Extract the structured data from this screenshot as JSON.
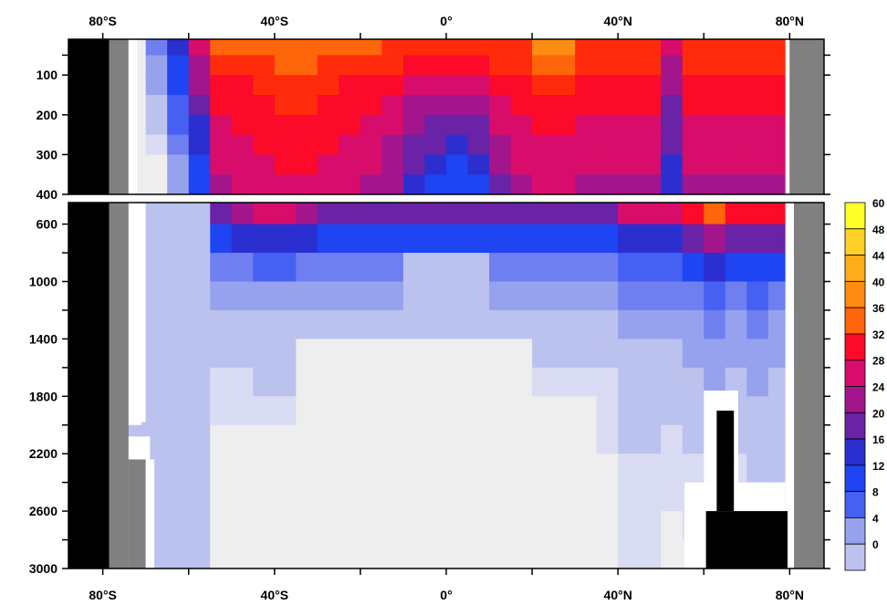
{
  "chart_data": {
    "type": "heatmap",
    "description_free": true,
    "x": {
      "unit": "latitude (degrees)",
      "range": [
        -88,
        88
      ],
      "tick_values": [
        -80,
        -40,
        0,
        40,
        80
      ],
      "tick_labels": [
        "80°S",
        "40°S",
        "0°",
        "40°N",
        "80°N"
      ],
      "minor_tick_values": [
        -60,
        -20,
        20,
        60
      ]
    },
    "y_upper": {
      "unit": "depth (m)",
      "range": [
        10,
        400
      ],
      "tick_values": [
        100,
        200,
        300,
        400
      ],
      "tick_labels": [
        "100",
        "200",
        "300",
        "400"
      ],
      "extra_tick_values": [
        50
      ]
    },
    "y_lower": {
      "unit": "depth (m)",
      "range": [
        450,
        3000
      ],
      "tick_values": [
        600,
        1000,
        1400,
        1800,
        2200,
        2600,
        3000
      ],
      "tick_labels": [
        "600",
        "1000",
        "1400",
        "1800",
        "2200",
        "2600",
        "3000"
      ],
      "minor_tick_values": [
        800,
        1200,
        1600,
        2000,
        2400,
        2800
      ]
    },
    "colorbar": {
      "levels": [
        0,
        4,
        8,
        12,
        16,
        20,
        24,
        28,
        32,
        36,
        40,
        44,
        48,
        60
      ],
      "labels": [
        "0",
        "4",
        "8",
        "12",
        "16",
        "20",
        "24",
        "28",
        "32",
        "36",
        "40",
        "44",
        "48",
        "60"
      ],
      "colors": [
        "#eeeeee",
        "#d9dcf2",
        "#bcc2ee",
        "#97a2ee",
        "#6f7ff0",
        "#4660f2",
        "#1f44f2",
        "#2b2fcf",
        "#6a22a7",
        "#a2158d",
        "#d80c6a",
        "#fb0a2a",
        "#ff2b0b",
        "#ff650a",
        "#ff8c12",
        "#ffac1b",
        "#ffd126",
        "#ffff2a"
      ]
    },
    "land_color": "#000000",
    "missing_color": "#808080",
    "x_grid": [
      -88,
      -80,
      -75,
      -70,
      -65,
      -60,
      -55,
      -50,
      -45,
      -40,
      -35,
      -30,
      -25,
      -20,
      -15,
      -10,
      -5,
      0,
      5,
      10,
      15,
      20,
      25,
      30,
      35,
      40,
      45,
      50,
      55,
      60,
      65,
      70,
      75,
      80,
      88
    ],
    "upper_depths": [
      10,
      50,
      100,
      150,
      200,
      250,
      300,
      350,
      400
    ],
    "lower_depths": [
      450,
      600,
      800,
      1000,
      1200,
      1400,
      1600,
      1800,
      2000,
      2200,
      2400,
      2600,
      2800,
      3000
    ]
  }
}
